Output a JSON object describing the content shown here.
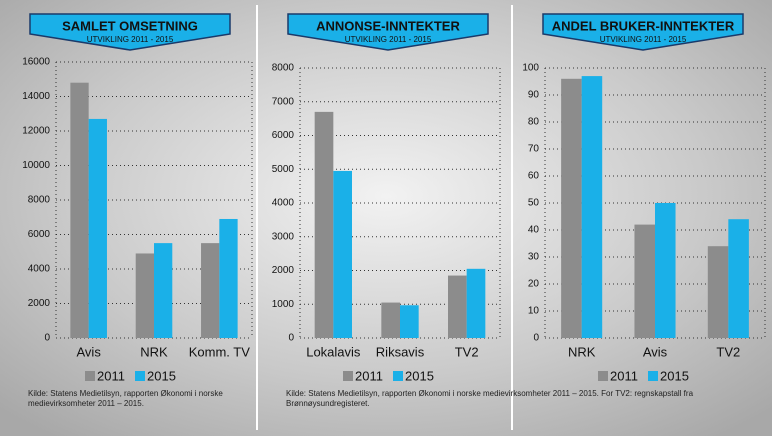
{
  "chart_data": [
    {
      "type": "bar",
      "title": "SAMLET OMSETNING",
      "subtitle": "UTVIKLING 2011 - 2015",
      "categories": [
        "Avis",
        "NRK",
        "Komm. TV"
      ],
      "series": [
        {
          "name": "2011",
          "color": "#8c8c8c",
          "values": [
            14800,
            4900,
            5500
          ]
        },
        {
          "name": "2015",
          "color": "#1ab0e8",
          "values": [
            12700,
            5500,
            6900
          ]
        }
      ],
      "ylim": [
        0,
        16000
      ],
      "yticks": [
        0,
        2000,
        4000,
        6000,
        8000,
        10000,
        12000,
        14000,
        16000
      ],
      "grid": true,
      "source": "Kilde: Statens Medietilsyn, rapporten Økonomi i norske medievirksomheter 2011 – 2015."
    },
    {
      "type": "bar",
      "title": "ANNONSE-INNTEKTER",
      "subtitle": "UTVIKLING 2011 - 2015",
      "categories": [
        "Lokalavis",
        "Riksavis",
        "TV2"
      ],
      "series": [
        {
          "name": "2011",
          "color": "#8c8c8c",
          "values": [
            6700,
            1050,
            1850
          ]
        },
        {
          "name": "2015",
          "color": "#1ab0e8",
          "values": [
            4950,
            970,
            2050
          ]
        }
      ],
      "ylim": [
        0,
        8000
      ],
      "yticks": [
        0,
        1000,
        2000,
        3000,
        4000,
        5000,
        6000,
        7000,
        8000
      ],
      "grid": true,
      "source": "Kilde: Statens Medietilsyn, rapporten Økonomi i norske medievirksomheter 2011 – 2015. For TV2: regnskapstall fra Brønnøysundregisteret."
    },
    {
      "type": "bar",
      "title": "ANDEL BRUKER-INNTEKTER",
      "subtitle": "UTVIKLING 2011 - 2015",
      "categories": [
        "NRK",
        "Avis",
        "TV2"
      ],
      "series": [
        {
          "name": "2011",
          "color": "#8c8c8c",
          "values": [
            96,
            42,
            34
          ]
        },
        {
          "name": "2015",
          "color": "#1ab0e8",
          "values": [
            97,
            50,
            44
          ]
        }
      ],
      "ylim": [
        0,
        100
      ],
      "yticks": [
        0,
        10,
        20,
        30,
        40,
        50,
        60,
        70,
        80,
        90,
        100
      ],
      "grid": true
    }
  ]
}
